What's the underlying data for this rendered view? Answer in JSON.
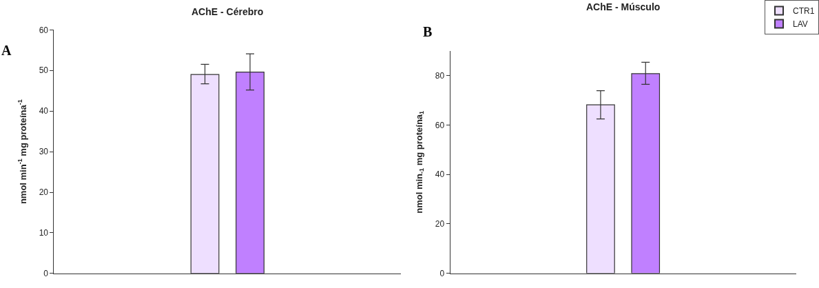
{
  "chart_data": [
    {
      "type": "bar",
      "title": "AChE - Cérebro",
      "ylabel": "nmol min$^{-1}$ mg proteína$^{-1}$",
      "categories": [
        null
      ],
      "annotations": [
        "A"
      ],
      "series": [
        {
          "color": "#eedfff",
          "values": [
            49.0
          ],
          "errors": [
            [
              46.7,
              51.5
            ]
          ]
        },
        {
          "color": "#c080ff",
          "values": [
            49.6
          ],
          "errors": [
            [
              45.2,
              54.1
            ]
          ]
        }
      ],
      "ylim": [
        0,
        60
      ],
      "yticks": [
        0,
        10,
        20,
        30,
        40,
        50,
        60
      ],
      "grid": false,
      "legend": false
    },
    {
      "type": "bar",
      "title": "AChE - Músculo",
      "ylabel": "nmol min$_{-1}$ mg proteína$_{1}$",
      "categories": [
        null
      ],
      "annotations": [
        "B"
      ],
      "series": [
        {
          "name": "CTR1",
          "color": "#eedfff",
          "values": [
            68.2
          ],
          "errors": [
            [
              62.5,
              73.9
            ]
          ]
        },
        {
          "name": "LAV",
          "color": "#c080ff",
          "values": [
            80.8
          ],
          "errors": [
            [
              76.5,
              85.4
            ]
          ]
        }
      ],
      "ylim": [
        0,
        90
      ],
      "yticks": [
        0,
        20,
        40,
        60,
        80
      ],
      "grid": false,
      "legend": "top right"
    }
  ]
}
